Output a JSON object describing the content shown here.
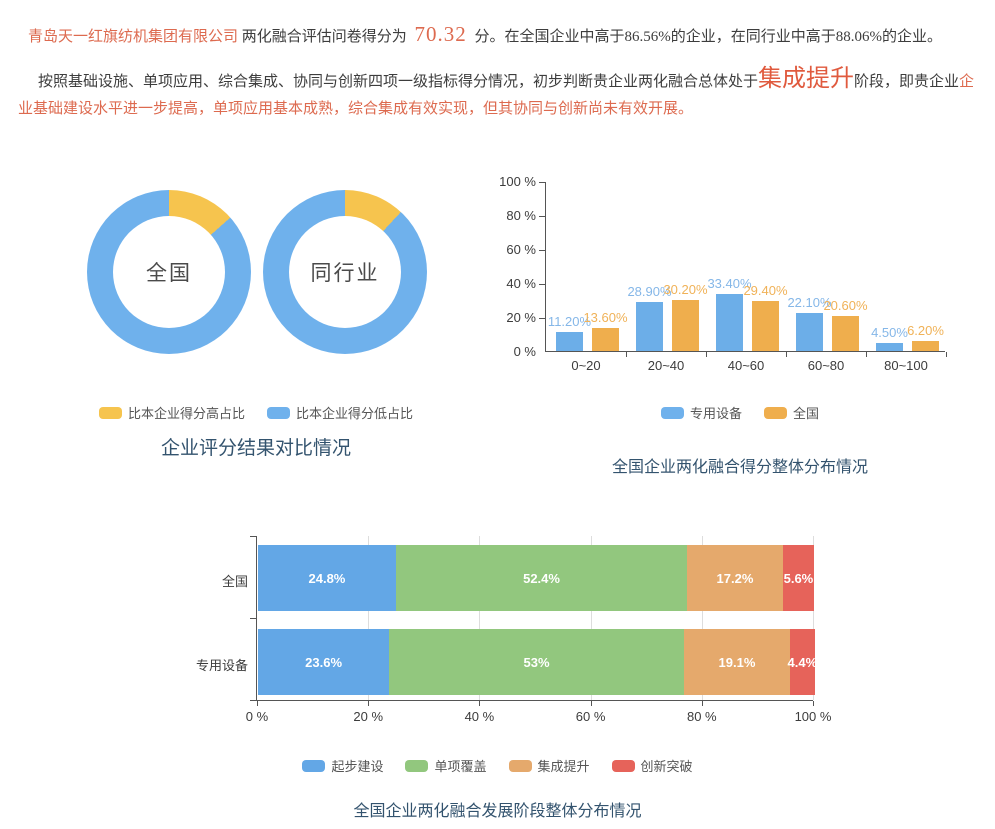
{
  "report": {
    "line1": {
      "company": "青岛天一红旗纺机集团有限公司",
      "mid": " 两化融合评估问卷得分为 ",
      "score": "70.32",
      "tail": " 分。在全国企业中高于86.56%的企业，在同行业中高于88.06%的企业。"
    },
    "para2": {
      "lead": "按照基础设施、单项应用、综合集成、协同与创新四项一级指标得分情况，初步判断贵企业两化融合总体处于",
      "stage": "集成提升",
      "mid": "阶段，即贵企业",
      "tail": "企业基础建设水平进一步提高，单项应用基本成熟，综合集成有效实现，但其协同与创新尚未有效开展。"
    }
  },
  "colors": {
    "accent_red": "#dd6a4f",
    "stage_red": "#e05a3e",
    "body_text": "#3d3d3d",
    "title_blue": "#33536e",
    "blue": "#6caee8",
    "yellow": "#f6c44e",
    "orange": "#efae4d",
    "stacked_green": "#92c77e",
    "stacked_orange": "#e5a96c",
    "stacked_red": "#e6635a"
  },
  "chart_data": [
    {
      "type": "pie",
      "title": "企业评分结果对比情况",
      "donuts": [
        {
          "label": "全国",
          "slices": [
            {
              "name": "比本企业得分高占比",
              "value": 13.44,
              "color": "#f6c44e"
            },
            {
              "name": "比本企业得分低占比",
              "value": 86.56,
              "color": "#6fb1ec"
            }
          ]
        },
        {
          "label": "同行业",
          "slices": [
            {
              "name": "比本企业得分高占比",
              "value": 11.94,
              "color": "#f6c44e"
            },
            {
              "name": "比本企业得分低占比",
              "value": 88.06,
              "color": "#6fb1ec"
            }
          ]
        }
      ],
      "legend": [
        {
          "label": "比本企业得分高占比",
          "color": "#f6c44e"
        },
        {
          "label": "比本企业得分低占比",
          "color": "#6fb1ec"
        }
      ]
    },
    {
      "type": "bar",
      "title": "全国企业两化融合得分整体分布情况",
      "categories": [
        "0~20",
        "20~40",
        "40~60",
        "60~80",
        "80~100"
      ],
      "series": [
        {
          "name": "专用设备",
          "color": "#6caee8",
          "label_color": "#85b7e8",
          "values": [
            11.2,
            28.9,
            33.4,
            22.1,
            4.5
          ],
          "labels": [
            "11.20%",
            "28.90%",
            "33.40%",
            "22.10%",
            "4.50%"
          ]
        },
        {
          "name": "全国",
          "color": "#efae4d",
          "label_color": "#f0b258",
          "values": [
            13.6,
            30.2,
            29.4,
            20.6,
            6.2
          ],
          "labels": [
            "13.60%",
            "30.20%",
            "29.40%",
            "20.60%",
            "6.20%"
          ]
        }
      ],
      "ylim": [
        0,
        100
      ],
      "yticks": [
        "100 %",
        "80 %",
        "60 %",
        "40 %",
        "20 %",
        "0 %"
      ],
      "legend": [
        {
          "label": "专用设备",
          "color": "#6fb1ec"
        },
        {
          "label": "全国",
          "color": "#efae4d"
        }
      ]
    },
    {
      "type": "stacked-bar",
      "title": "全国企业两化融合发展阶段整体分布情况",
      "categories": [
        "全国",
        "专用设备"
      ],
      "series": [
        {
          "name": "起步建设",
          "color": "#63a7e6",
          "values": [
            24.8,
            23.6
          ],
          "labels": [
            "24.8%",
            "23.6%"
          ]
        },
        {
          "name": "单项覆盖",
          "color": "#92c77e",
          "values": [
            52.4,
            53
          ],
          "labels": [
            "52.4%",
            "53%"
          ]
        },
        {
          "name": "集成提升",
          "color": "#e5a96c",
          "values": [
            17.2,
            19.1
          ],
          "labels": [
            "17.2%",
            "19.1%"
          ]
        },
        {
          "name": "创新突破",
          "color": "#e6635a",
          "values": [
            5.6,
            4.4
          ],
          "labels": [
            "5.6%",
            "4.4%"
          ]
        }
      ],
      "xlim": [
        0,
        100
      ],
      "xticks": [
        "0 %",
        "20 %",
        "40 %",
        "60 %",
        "80 %",
        "100 %"
      ],
      "legend": [
        {
          "label": "起步建设",
          "color": "#63a7e6"
        },
        {
          "label": "单项覆盖",
          "color": "#92c77e"
        },
        {
          "label": "集成提升",
          "color": "#e5a96c"
        },
        {
          "label": "创新突破",
          "color": "#e6635a"
        }
      ]
    }
  ]
}
